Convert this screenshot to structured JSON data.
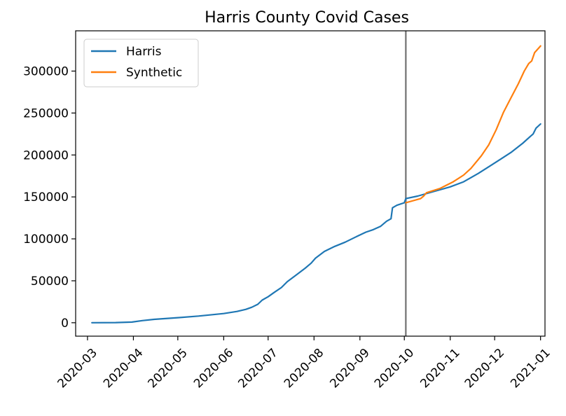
{
  "chart_data": {
    "type": "line",
    "title": "Harris County Covid Cases",
    "xlabel": "",
    "ylabel": "",
    "x_type": "date",
    "xlim": [
      "2020-02-22",
      "2021-01-04"
    ],
    "ylim": [
      -16000,
      348000
    ],
    "x_ticks": [
      "2020-03-01",
      "2020-04-01",
      "2020-05-01",
      "2020-06-01",
      "2020-07-01",
      "2020-08-01",
      "2020-09-01",
      "2020-10-01",
      "2020-11-01",
      "2020-12-01",
      "2021-01-01"
    ],
    "x_tick_labels": [
      "2020-03",
      "2020-04",
      "2020-05",
      "2020-06",
      "2020-07",
      "2020-08",
      "2020-09",
      "2020-10",
      "2020-11",
      "2020-12",
      "2021-01"
    ],
    "y_ticks": [
      0,
      50000,
      100000,
      150000,
      200000,
      250000,
      300000
    ],
    "y_tick_labels": [
      "0",
      "50000",
      "100000",
      "150000",
      "200000",
      "250000",
      "300000"
    ],
    "grid": false,
    "legend_position": "top-left",
    "vertical_line": {
      "x": "2020-10-02",
      "color": "#808080"
    },
    "series": [
      {
        "name": "Harris",
        "color": "#1f77b4",
        "points": [
          [
            "2020-03-04",
            0
          ],
          [
            "2020-03-20",
            200
          ],
          [
            "2020-03-31",
            800
          ],
          [
            "2020-04-07",
            2500
          ],
          [
            "2020-04-15",
            4000
          ],
          [
            "2020-05-01",
            6000
          ],
          [
            "2020-05-15",
            8000
          ],
          [
            "2020-06-01",
            11000
          ],
          [
            "2020-06-10",
            13500
          ],
          [
            "2020-06-16",
            16000
          ],
          [
            "2020-06-20",
            18500
          ],
          [
            "2020-06-24",
            22000
          ],
          [
            "2020-06-27",
            27000
          ],
          [
            "2020-07-01",
            31000
          ],
          [
            "2020-07-05",
            36000
          ],
          [
            "2020-07-10",
            42000
          ],
          [
            "2020-07-14",
            49000
          ],
          [
            "2020-07-20",
            57000
          ],
          [
            "2020-07-26",
            65000
          ],
          [
            "2020-07-30",
            71000
          ],
          [
            "2020-08-02",
            77000
          ],
          [
            "2020-08-08",
            85000
          ],
          [
            "2020-08-15",
            91000
          ],
          [
            "2020-08-22",
            96000
          ],
          [
            "2020-08-30",
            103000
          ],
          [
            "2020-09-05",
            108000
          ],
          [
            "2020-09-10",
            111000
          ],
          [
            "2020-09-15",
            115000
          ],
          [
            "2020-09-19",
            121000
          ],
          [
            "2020-09-22",
            124000
          ],
          [
            "2020-09-23",
            137000
          ],
          [
            "2020-09-26",
            140000
          ],
          [
            "2020-10-01",
            143000
          ],
          [
            "2020-10-02",
            148000
          ],
          [
            "2020-10-10",
            151000
          ],
          [
            "2020-10-20",
            156000
          ],
          [
            "2020-11-01",
            162000
          ],
          [
            "2020-11-10",
            168000
          ],
          [
            "2020-11-20",
            178000
          ],
          [
            "2020-11-28",
            187000
          ],
          [
            "2020-12-05",
            195000
          ],
          [
            "2020-12-12",
            203000
          ],
          [
            "2020-12-20",
            214000
          ],
          [
            "2020-12-25",
            222000
          ],
          [
            "2020-12-27",
            225000
          ],
          [
            "2020-12-29",
            232000
          ],
          [
            "2021-01-01",
            237000
          ]
        ]
      },
      {
        "name": "Synthetic",
        "color": "#ff7f0e",
        "points": [
          [
            "2020-10-02",
            143000
          ],
          [
            "2020-10-12",
            148000
          ],
          [
            "2020-10-14",
            151000
          ],
          [
            "2020-10-16",
            155000
          ],
          [
            "2020-10-25",
            160000
          ],
          [
            "2020-11-03",
            168000
          ],
          [
            "2020-11-10",
            176000
          ],
          [
            "2020-11-15",
            184000
          ],
          [
            "2020-11-22",
            199000
          ],
          [
            "2020-11-27",
            212000
          ],
          [
            "2020-12-02",
            230000
          ],
          [
            "2020-12-07",
            251000
          ],
          [
            "2020-12-12",
            268000
          ],
          [
            "2020-12-17",
            285000
          ],
          [
            "2020-12-21",
            300000
          ],
          [
            "2020-12-24",
            309000
          ],
          [
            "2020-12-26",
            312000
          ],
          [
            "2020-12-28",
            322000
          ],
          [
            "2021-01-01",
            330000
          ]
        ]
      }
    ]
  }
}
